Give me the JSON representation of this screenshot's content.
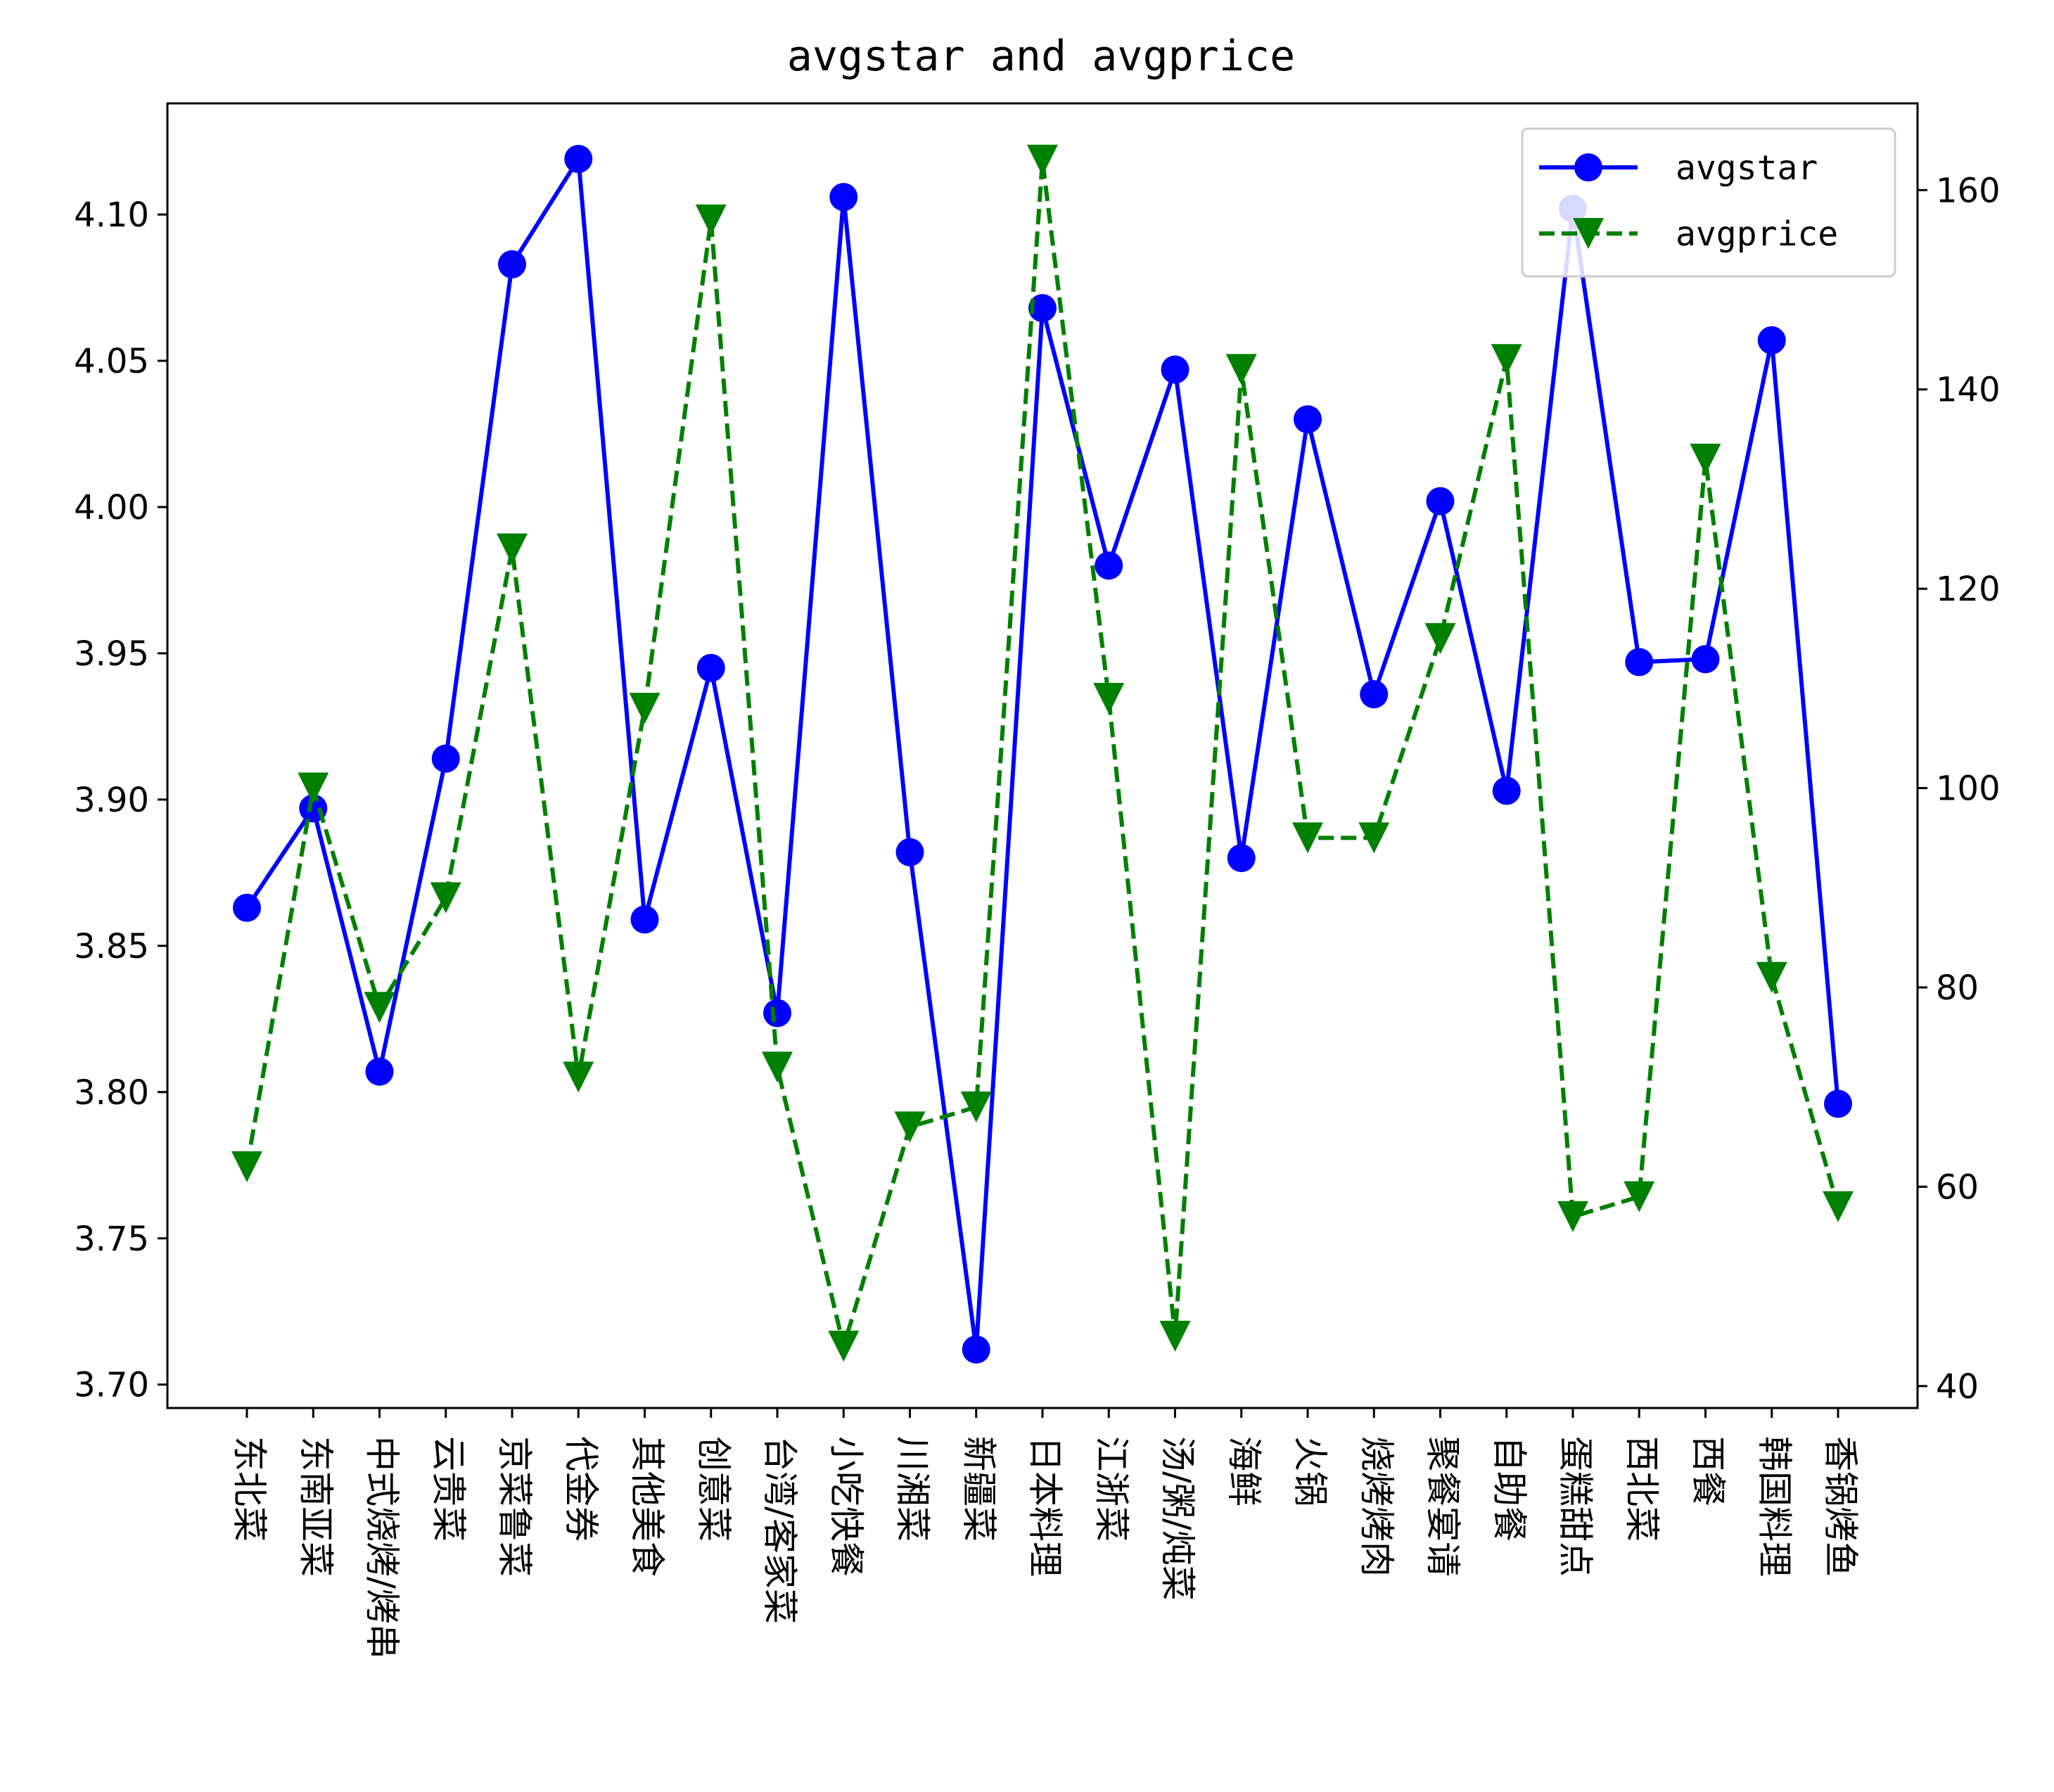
{
  "chart_data": {
    "type": "line",
    "title": "avgstar and avgprice",
    "categories": [
      "东北菜",
      "东南亚菜",
      "中式烧烤/烤串",
      "云贵菜",
      "京菜鲁菜",
      "代金券",
      "其他美食",
      "创意菜",
      "台湾/客家菜",
      "小吃快餐",
      "川湘菜",
      "新疆菜",
      "日本料理",
      "江浙菜",
      "汤/粥/炖菜",
      "海鲜",
      "火锅",
      "烧烤烤肉",
      "聚餐宴请",
      "自助餐",
      "蛋糕甜点",
      "西北菜",
      "西餐",
      "韩国料理",
      "香锅烤鱼"
    ],
    "series": [
      {
        "name": "avgstar",
        "axis": "left",
        "color": "#0000ff",
        "line_style": "solid",
        "marker": "circle",
        "values": [
          3.863,
          3.897,
          3.807,
          3.914,
          4.083,
          4.119,
          3.859,
          3.945,
          3.827,
          4.106,
          3.882,
          3.712,
          4.068,
          3.98,
          4.047,
          3.88,
          4.03,
          3.936,
          4.002,
          3.903,
          4.102,
          3.947,
          3.948,
          4.057,
          3.796
        ]
      },
      {
        "name": "avgprice",
        "axis": "right",
        "color": "#008000",
        "line_style": "dashed",
        "marker": "triangle-down",
        "values": [
          62,
          100,
          78,
          89,
          124,
          71,
          108,
          157,
          72,
          44,
          66,
          68,
          163,
          109,
          45,
          142,
          95,
          95,
          115,
          143,
          57,
          59,
          133,
          81,
          58
        ]
      }
    ],
    "y_left": {
      "lim": [
        3.692,
        4.138
      ],
      "ticks": [
        3.7,
        3.75,
        3.8,
        3.85,
        3.9,
        3.95,
        4.0,
        4.05,
        4.1
      ],
      "tick_labels": [
        "3.70",
        "3.75",
        "3.80",
        "3.85",
        "3.90",
        "3.95",
        "4.00",
        "4.05",
        "4.10"
      ]
    },
    "y_right": {
      "lim": [
        37.8,
        168.7
      ],
      "ticks": [
        40,
        60,
        80,
        100,
        120,
        140,
        160
      ],
      "tick_labels": [
        "40",
        "60",
        "80",
        "100",
        "120",
        "140",
        "160"
      ]
    },
    "grid": false,
    "legend_position": "top-right"
  }
}
